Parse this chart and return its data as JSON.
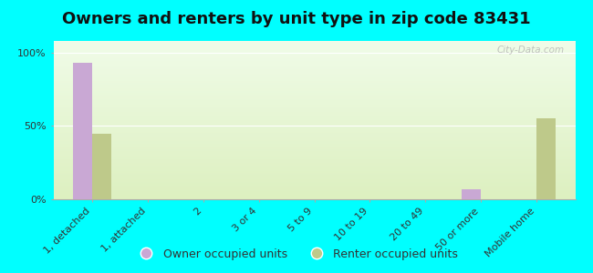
{
  "title": "Owners and renters by unit type in zip code 83431",
  "categories": [
    "1, detached",
    "1, attached",
    "2",
    "3 or 4",
    "5 to 9",
    "10 to 19",
    "20 to 49",
    "50 or more",
    "Mobile home"
  ],
  "owner_values": [
    93,
    0,
    0,
    0,
    0,
    0,
    0,
    7,
    0
  ],
  "renter_values": [
    45,
    0,
    0,
    0,
    0,
    0,
    0,
    0,
    55
  ],
  "owner_color": "#c9a8d4",
  "renter_color": "#bec98a",
  "background_color": "#00ffff",
  "ylabel_ticks": [
    "0%",
    "50%",
    "100%"
  ],
  "ytick_vals": [
    0,
    50,
    100
  ],
  "ylim": [
    0,
    108
  ],
  "bar_width": 0.35,
  "title_fontsize": 13,
  "tick_fontsize": 8,
  "legend_fontsize": 9,
  "watermark": "City-Data.com",
  "grad_top": "#f0fce8",
  "grad_bottom": "#ddf0c0"
}
